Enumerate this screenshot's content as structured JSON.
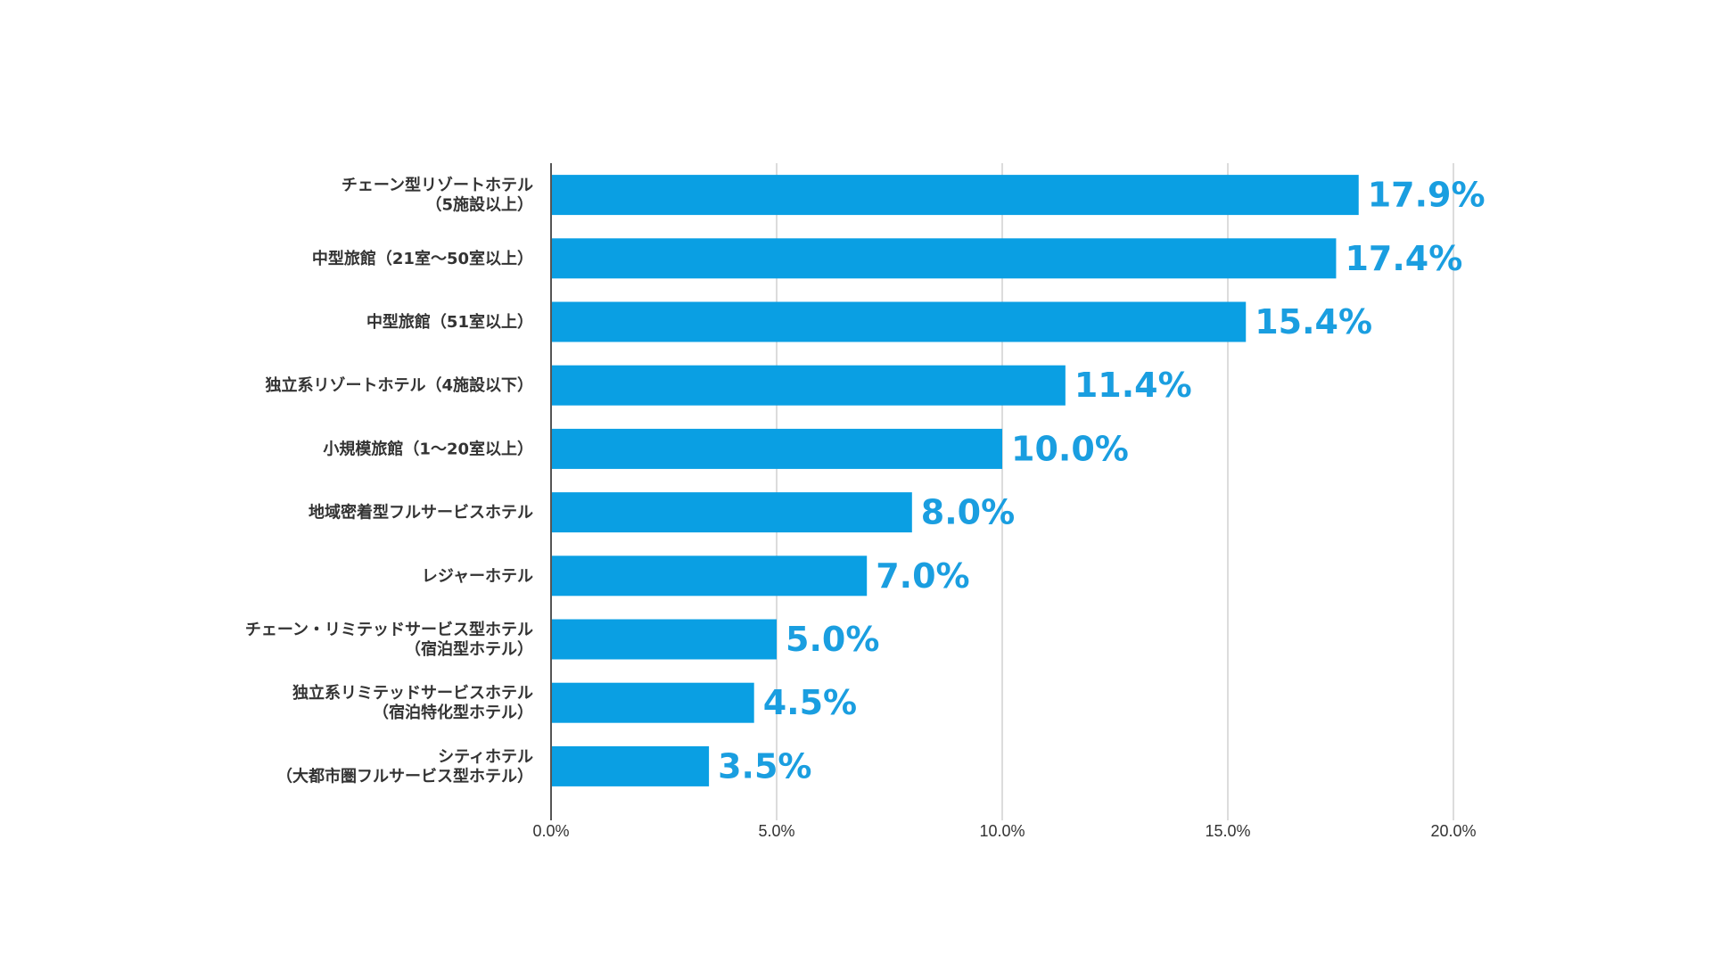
{
  "chart_data": {
    "type": "bar",
    "orientation": "horizontal",
    "categories": [
      [
        "チェーン型リゾートホテル",
        "（5施設以上）"
      ],
      [
        "中型旅館（21室〜50室以上）"
      ],
      [
        "中型旅館（51室以上）"
      ],
      [
        "独立系リゾートホテル（4施設以下）"
      ],
      [
        "小規模旅館（1〜20室以上）"
      ],
      [
        "地域密着型フルサービスホテル"
      ],
      [
        "レジャーホテル"
      ],
      [
        "チェーン・リミテッドサービス型ホテル",
        "（宿泊型ホテル）"
      ],
      [
        "独立系リミテッドサービスホテル",
        "（宿泊特化型ホテル）"
      ],
      [
        "シティホテル",
        "（大都市圏フルサービス型ホテル）"
      ]
    ],
    "values": [
      17.9,
      17.4,
      15.4,
      11.4,
      10.0,
      8.0,
      7.0,
      5.0,
      4.5,
      3.5
    ],
    "value_labels": [
      "17.9%",
      "17.4%",
      "15.4%",
      "11.4%",
      "10.0%",
      "8.0%",
      "7.0%",
      "5.0%",
      "4.5%",
      "3.5%"
    ],
    "xlim": [
      0,
      20
    ],
    "xticks": [
      0,
      5,
      10,
      15,
      20
    ],
    "xtick_labels": [
      "0.0%",
      "5.0%",
      "10.0%",
      "15.0%",
      "20.0%"
    ],
    "grid": true,
    "bar_color": "#0a9fe3",
    "label_color": "#1a9ee0"
  }
}
